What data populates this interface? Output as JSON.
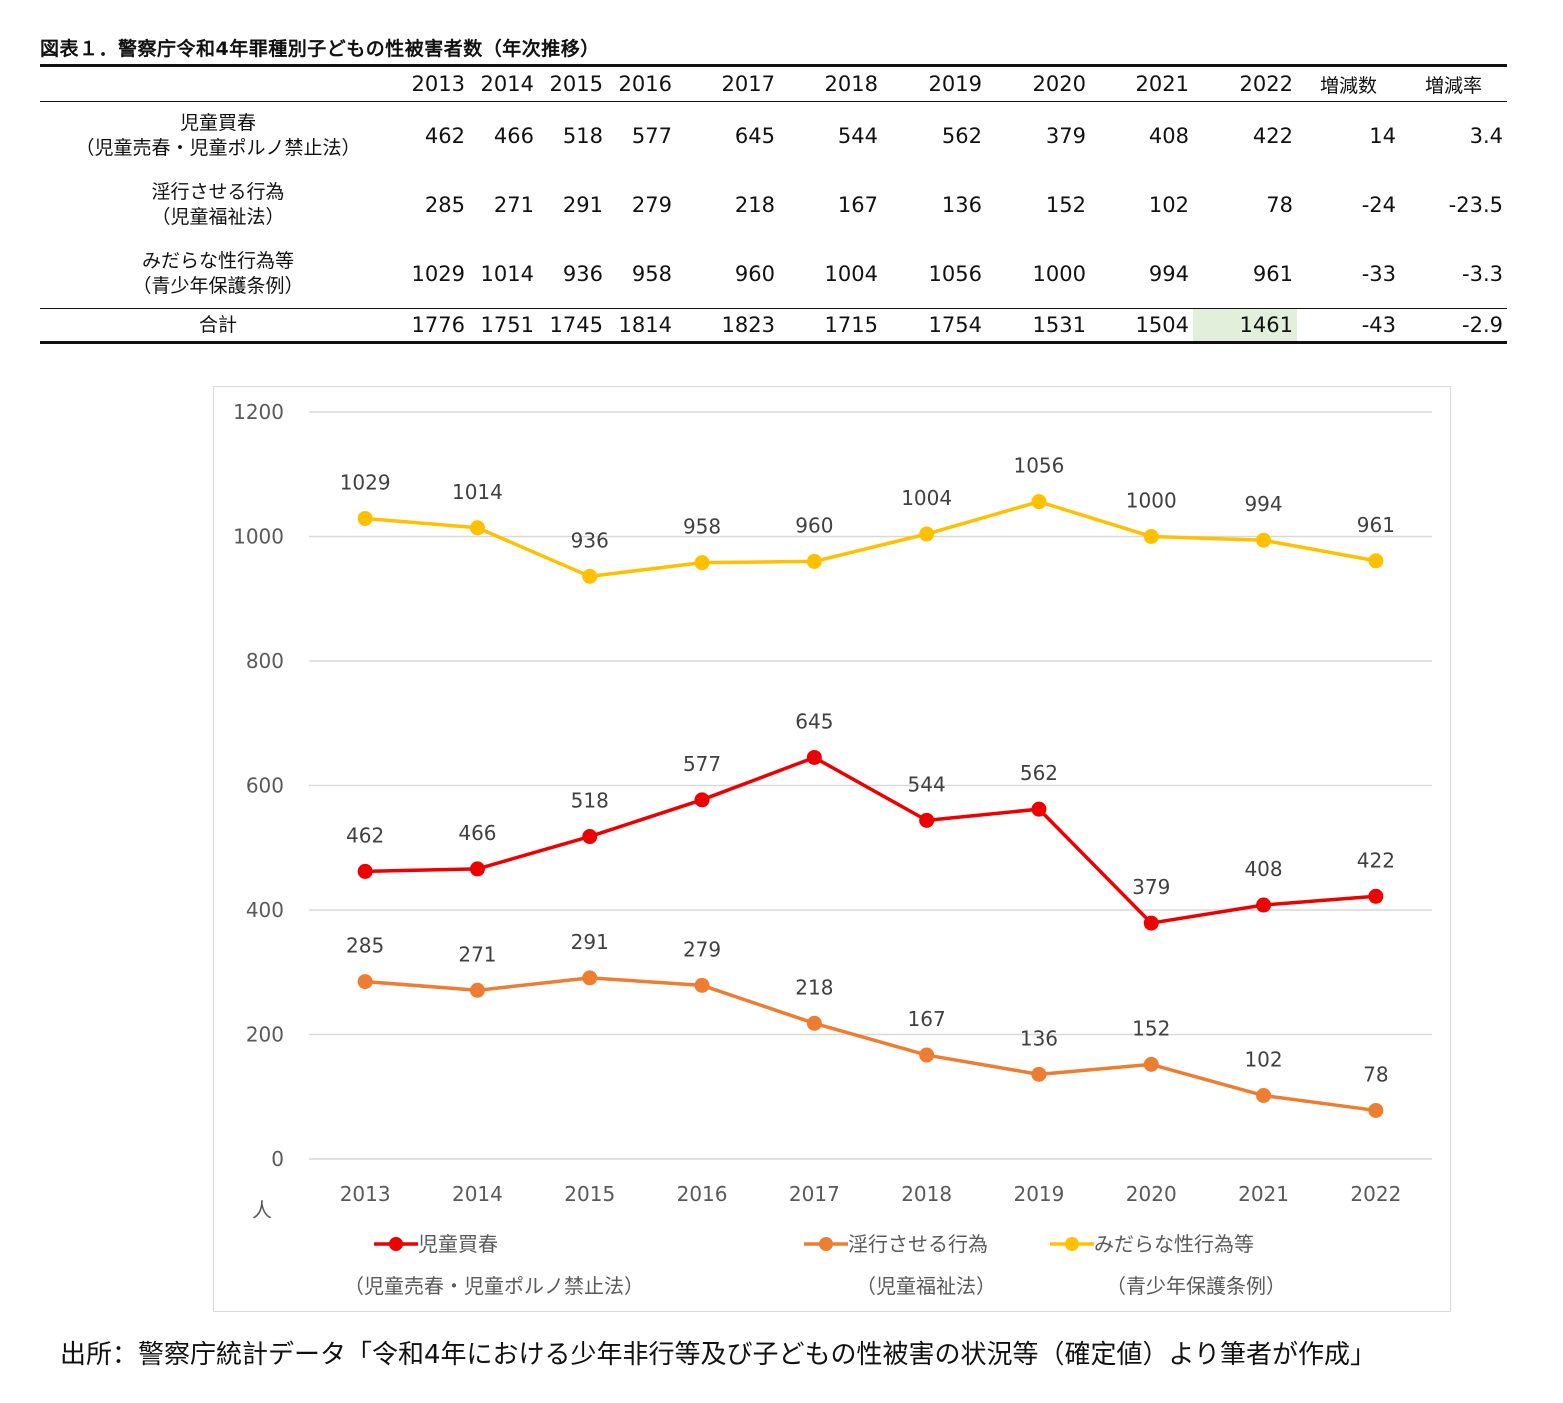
{
  "title": "図表１．警察庁令和4年罪種別子どもの性被害者数（年次推移）",
  "table": {
    "years": [
      "2013",
      "2014",
      "2015",
      "2016",
      "2017",
      "2018",
      "2019",
      "2020",
      "2021",
      "2022"
    ],
    "change_count_label": "増減数",
    "change_rate_label": "増減率",
    "rows": [
      {
        "label1": "児童買春",
        "label2": "（児童売春・児童ポルノ禁止法）",
        "values": [
          "462",
          "466",
          "518",
          "577",
          "645",
          "544",
          "562",
          "379",
          "408",
          "422"
        ],
        "change": "14",
        "rate": "3.4"
      },
      {
        "label1": "淫行させる行為",
        "label2": "（児童福祉法）",
        "values": [
          "285",
          "271",
          "291",
          "279",
          "218",
          "167",
          "136",
          "152",
          "102",
          "78"
        ],
        "change": "-24",
        "rate": "-23.5"
      },
      {
        "label1": "みだらな性行為等",
        "label2": "（青少年保護条例）",
        "values": [
          "1029",
          "1014",
          "936",
          "958",
          "960",
          "1004",
          "1056",
          "1000",
          "994",
          "961"
        ],
        "change": "-33",
        "rate": "-3.3"
      }
    ],
    "total": {
      "label": "合計",
      "values": [
        "1776",
        "1751",
        "1745",
        "1814",
        "1823",
        "1715",
        "1754",
        "1531",
        "1504",
        "1461"
      ],
      "change": "-43",
      "rate": "-2.9"
    },
    "highlight_color": "#e2efda"
  },
  "chart_data": {
    "type": "line",
    "categories": [
      "2013",
      "2014",
      "2015",
      "2016",
      "2017",
      "2018",
      "2019",
      "2020",
      "2021",
      "2022"
    ],
    "ylim": [
      0,
      1200
    ],
    "yticks": [
      0,
      200,
      400,
      600,
      800,
      1000,
      1200
    ],
    "ylabel": "人",
    "grid": true,
    "legend_position": "bottom",
    "series": [
      {
        "name": "児童買春",
        "sub": "（児童売春・児童ポルノ禁止法）",
        "color": "#ee0000",
        "values": [
          462,
          466,
          518,
          577,
          645,
          544,
          562,
          379,
          408,
          422
        ]
      },
      {
        "name": "淫行させる行為",
        "sub": "（児童福祉法）",
        "color": "#ed7d31",
        "values": [
          285,
          271,
          291,
          279,
          218,
          167,
          136,
          152,
          102,
          78
        ]
      },
      {
        "name": "みだらな性行為等",
        "sub": "（青少年保護条例）",
        "color": "#ffc000",
        "values": [
          1029,
          1014,
          936,
          958,
          960,
          1004,
          1056,
          1000,
          994,
          961
        ]
      }
    ]
  },
  "source": "出所：警察庁統計データ「令和4年における少年非行等及び子どもの性被害の状況等（確定値）より筆者が作成」"
}
